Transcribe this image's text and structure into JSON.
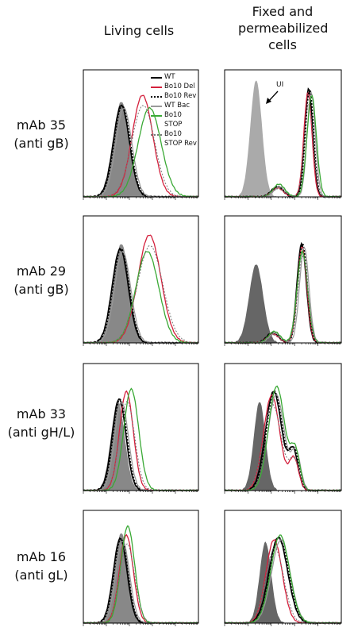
{
  "columns": [
    "Living cells",
    "Fixed and permeabilized cells"
  ],
  "rows": [
    {
      "label": "mAb 35",
      "target": "(anti gB)"
    },
    {
      "label": "mAb 29",
      "target": "(anti gB)"
    },
    {
      "label": "mAb 33",
      "target": "(anti gH/L)"
    },
    {
      "label": "mAb 16",
      "target": "(anti gL)"
    }
  ],
  "legend": [
    "WT",
    "Bo10 Del",
    "Bo10 Rev",
    "WT Bac",
    "Bo10 STOP",
    "Bo10 STOP Rev"
  ],
  "annotation": "UI"
}
